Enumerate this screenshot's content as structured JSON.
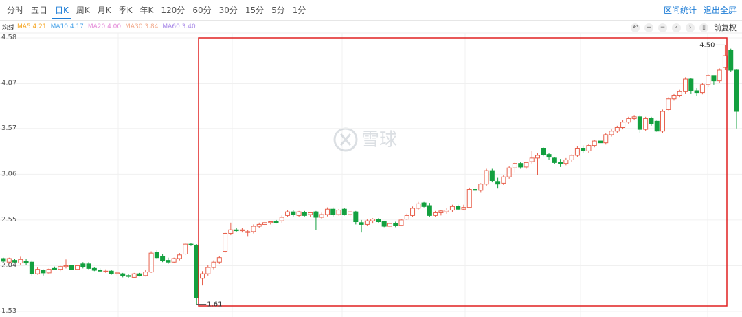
{
  "toolbar": {
    "tabs": [
      "分时",
      "五日",
      "日K",
      "周K",
      "月K",
      "季K",
      "年K",
      "120分",
      "60分",
      "30分",
      "15分",
      "5分",
      "1分"
    ],
    "active_tab": 2,
    "links": [
      "区间统计",
      "退出全屏"
    ]
  },
  "ma_bar": {
    "title": "均线",
    "items": [
      {
        "text": "MA5 4.21",
        "color": "#f5a623"
      },
      {
        "text": "MA10 4.17",
        "color": "#4aa3e8"
      },
      {
        "text": "MA20 4.00",
        "color": "#e48ad8"
      },
      {
        "text": "MA30 3.84",
        "color": "#f2a98a"
      },
      {
        "text": "MA60 3.40",
        "color": "#a98ae8"
      }
    ],
    "adjust": "前复权"
  },
  "watermark": "雪球",
  "chart_data": {
    "type": "candlestick",
    "up_color": "#e8604c",
    "down_color": "#13a03f",
    "grid": true,
    "ylim": [
      1.53,
      4.58
    ],
    "yticks": [
      4.58,
      4.07,
      3.57,
      3.06,
      2.55,
      2.04,
      1.53
    ],
    "max_label": "4.50",
    "min_label": "1.61",
    "series": [
      {
        "open": [
          2.12,
          2.08,
          2.1,
          2.07,
          2.09,
          2.08,
          1.95,
          1.99,
          1.96,
          2.01,
          2.0,
          2.03,
          2.04,
          2.0,
          2.06,
          2.06,
          2.01,
          1.99,
          1.98,
          1.98,
          1.95,
          1.95,
          1.93,
          1.91,
          1.95,
          1.93,
          1.97,
          2.19,
          2.14,
          2.1,
          2.08,
          2.12,
          2.17,
          2.28,
          2.27,
          1.9,
          1.95,
          2.02,
          2.08,
          2.2,
          2.4,
          2.44,
          2.43,
          2.41,
          2.42,
          2.48,
          2.5,
          2.52,
          2.53,
          2.54,
          2.6,
          2.64,
          2.6,
          2.63,
          2.61,
          2.64,
          2.58,
          2.61,
          2.67,
          2.61,
          2.67,
          2.61,
          2.64,
          2.52,
          2.5,
          2.54,
          2.56,
          2.53,
          2.48,
          2.51,
          2.49,
          2.56,
          2.6,
          2.68,
          2.74,
          2.71,
          2.6,
          2.63,
          2.64,
          2.66,
          2.7,
          2.67,
          2.69,
          2.89,
          2.88,
          2.95,
          3.1,
          2.98,
          2.96,
          3.03,
          3.13,
          3.18,
          3.14,
          3.2,
          3.24,
          3.35,
          3.28,
          3.24,
          3.19,
          3.18,
          3.22,
          3.27,
          3.35,
          3.32,
          3.38,
          3.43,
          3.41,
          3.5,
          3.54,
          3.58,
          3.64,
          3.68,
          3.7,
          3.56,
          3.68,
          3.65,
          3.54,
          3.78,
          3.9,
          3.94,
          3.98,
          4.12,
          3.99,
          3.97,
          4.06,
          4.16,
          4.1,
          4.25,
          4.44,
          4.22
        ],
        "high": [
          2.13,
          2.13,
          2.12,
          2.14,
          2.12,
          2.1,
          2.02,
          2.0,
          2.01,
          2.03,
          2.04,
          2.11,
          2.05,
          2.05,
          2.08,
          2.08,
          2.02,
          2.01,
          2.0,
          1.99,
          1.98,
          1.96,
          1.95,
          1.96,
          1.96,
          1.99,
          2.2,
          2.21,
          2.17,
          2.13,
          2.13,
          2.18,
          2.29,
          2.29,
          2.28,
          1.98,
          2.05,
          2.1,
          2.15,
          2.42,
          2.52,
          2.46,
          2.46,
          2.44,
          2.5,
          2.52,
          2.54,
          2.54,
          2.55,
          2.6,
          2.66,
          2.66,
          2.65,
          2.65,
          2.64,
          2.65,
          2.63,
          2.69,
          2.69,
          2.67,
          2.68,
          2.65,
          2.65,
          2.55,
          2.56,
          2.57,
          2.57,
          2.54,
          2.52,
          2.53,
          2.56,
          2.62,
          2.7,
          2.75,
          2.75,
          2.74,
          2.65,
          2.66,
          2.68,
          2.72,
          2.72,
          2.72,
          2.91,
          2.92,
          2.96,
          3.12,
          3.12,
          3.02,
          3.05,
          3.15,
          3.2,
          3.2,
          3.2,
          3.32,
          3.3,
          3.36,
          3.3,
          3.25,
          3.23,
          3.24,
          3.28,
          3.37,
          3.38,
          3.4,
          3.44,
          3.46,
          3.52,
          3.56,
          3.6,
          3.66,
          3.7,
          3.72,
          3.72,
          3.7,
          3.7,
          3.66,
          3.78,
          3.92,
          3.96,
          4.0,
          4.14,
          4.13,
          4.02,
          4.08,
          4.18,
          4.16,
          4.24,
          4.5,
          4.46,
          4.23
        ],
        "low": [
          2.08,
          2.06,
          2.07,
          2.05,
          2.05,
          1.93,
          1.94,
          1.93,
          1.95,
          1.99,
          1.98,
          2.01,
          1.99,
          1.99,
          2.01,
          2.0,
          1.98,
          1.97,
          1.96,
          1.94,
          1.93,
          1.91,
          1.9,
          1.9,
          1.92,
          1.92,
          1.96,
          2.12,
          2.08,
          2.06,
          2.07,
          2.1,
          2.16,
          2.26,
          1.61,
          1.82,
          1.93,
          2.0,
          2.06,
          2.18,
          2.38,
          2.42,
          2.41,
          2.37,
          2.4,
          2.46,
          2.48,
          2.5,
          2.51,
          2.52,
          2.58,
          2.59,
          2.58,
          2.59,
          2.58,
          2.44,
          2.56,
          2.59,
          2.59,
          2.6,
          2.6,
          2.58,
          2.5,
          2.41,
          2.48,
          2.51,
          2.52,
          2.47,
          2.46,
          2.47,
          2.48,
          2.55,
          2.58,
          2.66,
          2.69,
          2.58,
          2.58,
          2.6,
          2.62,
          2.64,
          2.66,
          2.66,
          2.68,
          2.84,
          2.86,
          2.93,
          2.97,
          2.9,
          2.94,
          3.01,
          3.08,
          3.12,
          3.12,
          3.18,
          3.05,
          3.26,
          3.22,
          3.17,
          3.14,
          3.16,
          3.2,
          3.25,
          3.3,
          3.3,
          3.36,
          3.39,
          3.39,
          3.48,
          3.52,
          3.56,
          3.62,
          3.66,
          3.52,
          3.54,
          3.6,
          3.53,
          3.52,
          3.76,
          3.88,
          3.92,
          3.96,
          3.96,
          3.93,
          3.95,
          4.03,
          4.06,
          4.08,
          4.22,
          4.2,
          3.57
        ],
        "close": [
          2.09,
          2.12,
          2.08,
          2.11,
          2.07,
          1.95,
          2.0,
          1.96,
          2.0,
          2.0,
          2.03,
          2.04,
          2.0,
          2.04,
          2.03,
          2.01,
          1.99,
          1.98,
          1.98,
          1.95,
          1.96,
          1.93,
          1.92,
          1.95,
          1.93,
          1.97,
          2.18,
          2.13,
          2.1,
          2.08,
          2.12,
          2.16,
          2.28,
          2.27,
          1.68,
          1.95,
          2.02,
          2.08,
          2.13,
          2.4,
          2.44,
          2.43,
          2.44,
          2.42,
          2.48,
          2.5,
          2.52,
          2.53,
          2.52,
          2.58,
          2.64,
          2.61,
          2.64,
          2.6,
          2.63,
          2.58,
          2.61,
          2.67,
          2.61,
          2.66,
          2.61,
          2.64,
          2.53,
          2.5,
          2.54,
          2.56,
          2.53,
          2.48,
          2.51,
          2.49,
          2.55,
          2.6,
          2.68,
          2.73,
          2.7,
          2.6,
          2.63,
          2.65,
          2.66,
          2.7,
          2.67,
          2.69,
          2.89,
          2.88,
          2.95,
          3.1,
          2.99,
          2.95,
          3.03,
          3.13,
          3.18,
          3.14,
          3.19,
          3.24,
          3.27,
          3.28,
          3.25,
          3.19,
          3.18,
          3.22,
          3.27,
          3.35,
          3.32,
          3.38,
          3.43,
          3.41,
          3.5,
          3.54,
          3.58,
          3.64,
          3.68,
          3.7,
          3.56,
          3.68,
          3.62,
          3.54,
          3.76,
          3.9,
          3.94,
          3.98,
          4.12,
          3.99,
          3.97,
          4.06,
          4.16,
          4.1,
          4.22,
          4.38,
          4.22,
          3.76
        ]
      }
    ]
  }
}
